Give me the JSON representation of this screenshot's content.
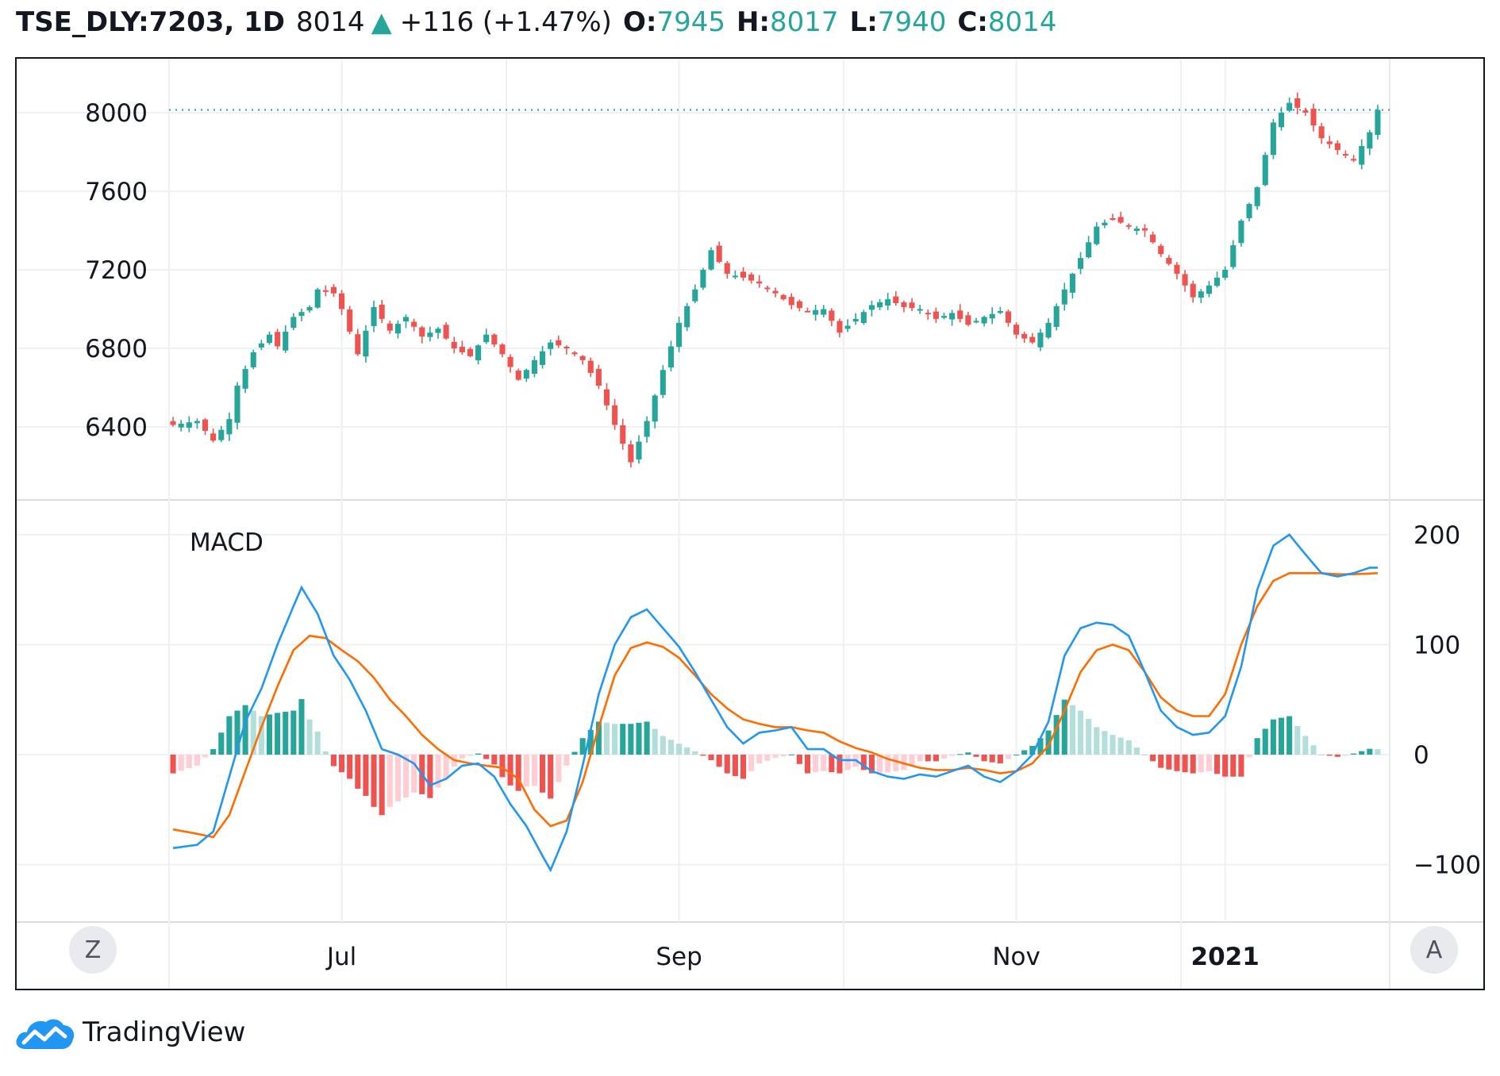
{
  "header": {
    "symbol": "TSE_DLY:7203, 1D",
    "last": "8014",
    "change_arrow": "▲",
    "change": "+116 (+1.47%)",
    "o_label": "O:",
    "o_value": "7945",
    "h_label": "H:",
    "h_value": "8017",
    "l_label": "L:",
    "l_value": "7940",
    "c_label": "C:",
    "c_value": "8014"
  },
  "buttons": {
    "zoom_label": "Z",
    "auto_label": "A"
  },
  "brand": {
    "name": "TradingView",
    "icon": "tradingview-cloud-icon"
  },
  "colors": {
    "up": "#26a69a",
    "down": "#ef5350",
    "macd_line": "#2196f3",
    "signal_line": "#ff6d00",
    "hist_up_strong": "#26a69a",
    "hist_up_weak": "#b2dfdb",
    "hist_down_strong": "#ef5350",
    "hist_down_weak": "#ffcdd2"
  },
  "chart_data": {
    "type": "candlestick",
    "price_axis": {
      "ticks": [
        6400,
        6800,
        7200,
        7600,
        8000
      ],
      "range": [
        6200,
        8100
      ]
    },
    "last_price_line": 8014,
    "x_axis": {
      "ticks": [
        {
          "label": "Jul",
          "index": 21
        },
        {
          "label": "Sep",
          "index": 63
        },
        {
          "label": "Nov",
          "index": 105
        },
        {
          "label": "2021",
          "index": 131
        }
      ]
    },
    "close_anchors": [
      [
        0,
        6410
      ],
      [
        3,
        6430
      ],
      [
        5,
        6330
      ],
      [
        7,
        6440
      ],
      [
        8,
        6610
      ],
      [
        10,
        6780
      ],
      [
        12,
        6870
      ],
      [
        13,
        6810
      ],
      [
        15,
        6960
      ],
      [
        17,
        7010
      ],
      [
        18,
        7100
      ],
      [
        20,
        7080
      ],
      [
        21,
        7000
      ],
      [
        23,
        6770
      ],
      [
        25,
        7010
      ],
      [
        27,
        6890
      ],
      [
        29,
        6960
      ],
      [
        31,
        6860
      ],
      [
        33,
        6900
      ],
      [
        35,
        6800
      ],
      [
        37,
        6760
      ],
      [
        39,
        6870
      ],
      [
        41,
        6770
      ],
      [
        43,
        6640
      ],
      [
        45,
        6740
      ],
      [
        47,
        6830
      ],
      [
        49,
        6800
      ],
      [
        51,
        6740
      ],
      [
        53,
        6610
      ],
      [
        55,
        6410
      ],
      [
        57,
        6220
      ],
      [
        59,
        6430
      ],
      [
        61,
        6690
      ],
      [
        63,
        6930
      ],
      [
        65,
        7100
      ],
      [
        67,
        7300
      ],
      [
        69,
        7180
      ],
      [
        71,
        7160
      ],
      [
        73,
        7130
      ],
      [
        75,
        7080
      ],
      [
        77,
        7020
      ],
      [
        79,
        6990
      ],
      [
        81,
        7000
      ],
      [
        83,
        6880
      ],
      [
        85,
        6950
      ],
      [
        87,
        7020
      ],
      [
        89,
        7050
      ],
      [
        91,
        7010
      ],
      [
        93,
        7000
      ],
      [
        95,
        6950
      ],
      [
        97,
        6980
      ],
      [
        99,
        6920
      ],
      [
        101,
        6960
      ],
      [
        103,
        6990
      ],
      [
        105,
        6870
      ],
      [
        107,
        6830
      ],
      [
        109,
        6930
      ],
      [
        111,
        7100
      ],
      [
        113,
        7260
      ],
      [
        115,
        7420
      ],
      [
        117,
        7460
      ],
      [
        119,
        7420
      ],
      [
        121,
        7400
      ],
      [
        123,
        7280
      ],
      [
        125,
        7180
      ],
      [
        127,
        7060
      ],
      [
        129,
        7120
      ],
      [
        131,
        7200
      ],
      [
        133,
        7450
      ],
      [
        135,
        7620
      ],
      [
        137,
        7950
      ],
      [
        139,
        8050
      ],
      [
        141,
        8000
      ],
      [
        143,
        7870
      ],
      [
        145,
        7810
      ],
      [
        147,
        7760
      ],
      [
        149,
        7900
      ],
      [
        150,
        8014
      ]
    ],
    "macd_axis": {
      "ticks": [
        -100,
        0,
        100,
        200
      ],
      "range": [
        -150,
        215
      ]
    },
    "macd_anchors": [
      [
        0,
        -85
      ],
      [
        3,
        -82
      ],
      [
        5,
        -70
      ],
      [
        7,
        -20
      ],
      [
        9,
        30
      ],
      [
        11,
        60
      ],
      [
        13,
        100
      ],
      [
        15,
        135
      ],
      [
        16,
        152
      ],
      [
        18,
        128
      ],
      [
        20,
        90
      ],
      [
        22,
        68
      ],
      [
        24,
        40
      ],
      [
        26,
        5
      ],
      [
        28,
        0
      ],
      [
        30,
        -8
      ],
      [
        32,
        -28
      ],
      [
        34,
        -22
      ],
      [
        36,
        -10
      ],
      [
        38,
        -8
      ],
      [
        40,
        -20
      ],
      [
        42,
        -45
      ],
      [
        44,
        -65
      ],
      [
        46,
        -92
      ],
      [
        47,
        -105
      ],
      [
        49,
        -70
      ],
      [
        51,
        -10
      ],
      [
        53,
        55
      ],
      [
        55,
        100
      ],
      [
        57,
        125
      ],
      [
        59,
        132
      ],
      [
        61,
        115
      ],
      [
        63,
        98
      ],
      [
        65,
        75
      ],
      [
        67,
        50
      ],
      [
        69,
        25
      ],
      [
        71,
        10
      ],
      [
        73,
        20
      ],
      [
        75,
        22
      ],
      [
        77,
        25
      ],
      [
        79,
        5
      ],
      [
        81,
        5
      ],
      [
        83,
        -5
      ],
      [
        85,
        -5
      ],
      [
        87,
        -15
      ],
      [
        89,
        -20
      ],
      [
        91,
        -22
      ],
      [
        93,
        -18
      ],
      [
        95,
        -20
      ],
      [
        97,
        -15
      ],
      [
        99,
        -10
      ],
      [
        101,
        -20
      ],
      [
        103,
        -25
      ],
      [
        105,
        -15
      ],
      [
        107,
        0
      ],
      [
        109,
        30
      ],
      [
        111,
        90
      ],
      [
        113,
        115
      ],
      [
        115,
        120
      ],
      [
        117,
        118
      ],
      [
        119,
        108
      ],
      [
        121,
        75
      ],
      [
        123,
        40
      ],
      [
        125,
        25
      ],
      [
        127,
        18
      ],
      [
        129,
        20
      ],
      [
        131,
        35
      ],
      [
        133,
        80
      ],
      [
        135,
        150
      ],
      [
        137,
        190
      ],
      [
        139,
        200
      ],
      [
        141,
        182
      ],
      [
        143,
        165
      ],
      [
        145,
        162
      ],
      [
        147,
        165
      ],
      [
        149,
        170
      ],
      [
        150,
        170
      ]
    ],
    "signal_anchors": [
      [
        0,
        -68
      ],
      [
        3,
        -72
      ],
      [
        5,
        -75
      ],
      [
        7,
        -55
      ],
      [
        9,
        -15
      ],
      [
        11,
        25
      ],
      [
        13,
        62
      ],
      [
        15,
        95
      ],
      [
        17,
        108
      ],
      [
        19,
        106
      ],
      [
        21,
        95
      ],
      [
        23,
        85
      ],
      [
        25,
        70
      ],
      [
        27,
        50
      ],
      [
        29,
        35
      ],
      [
        31,
        18
      ],
      [
        33,
        5
      ],
      [
        35,
        -5
      ],
      [
        37,
        -8
      ],
      [
        39,
        -10
      ],
      [
        41,
        -12
      ],
      [
        43,
        -22
      ],
      [
        45,
        -50
      ],
      [
        47,
        -65
      ],
      [
        49,
        -60
      ],
      [
        51,
        -25
      ],
      [
        53,
        25
      ],
      [
        55,
        72
      ],
      [
        57,
        97
      ],
      [
        59,
        102
      ],
      [
        61,
        98
      ],
      [
        63,
        88
      ],
      [
        65,
        72
      ],
      [
        67,
        55
      ],
      [
        69,
        42
      ],
      [
        71,
        32
      ],
      [
        73,
        28
      ],
      [
        75,
        25
      ],
      [
        77,
        25
      ],
      [
        79,
        22
      ],
      [
        81,
        20
      ],
      [
        83,
        12
      ],
      [
        85,
        6
      ],
      [
        87,
        2
      ],
      [
        89,
        -4
      ],
      [
        91,
        -8
      ],
      [
        93,
        -12
      ],
      [
        95,
        -14
      ],
      [
        97,
        -14
      ],
      [
        99,
        -12
      ],
      [
        101,
        -14
      ],
      [
        103,
        -17
      ],
      [
        105,
        -15
      ],
      [
        107,
        -8
      ],
      [
        109,
        8
      ],
      [
        111,
        40
      ],
      [
        113,
        75
      ],
      [
        115,
        95
      ],
      [
        117,
        100
      ],
      [
        119,
        95
      ],
      [
        121,
        75
      ],
      [
        123,
        52
      ],
      [
        125,
        40
      ],
      [
        127,
        35
      ],
      [
        129,
        35
      ],
      [
        131,
        55
      ],
      [
        133,
        100
      ],
      [
        135,
        135
      ],
      [
        137,
        158
      ],
      [
        139,
        165
      ],
      [
        141,
        165
      ],
      [
        143,
        165
      ],
      [
        145,
        164
      ],
      [
        147,
        164
      ],
      [
        150,
        165
      ]
    ],
    "panel_title": "MACD"
  }
}
